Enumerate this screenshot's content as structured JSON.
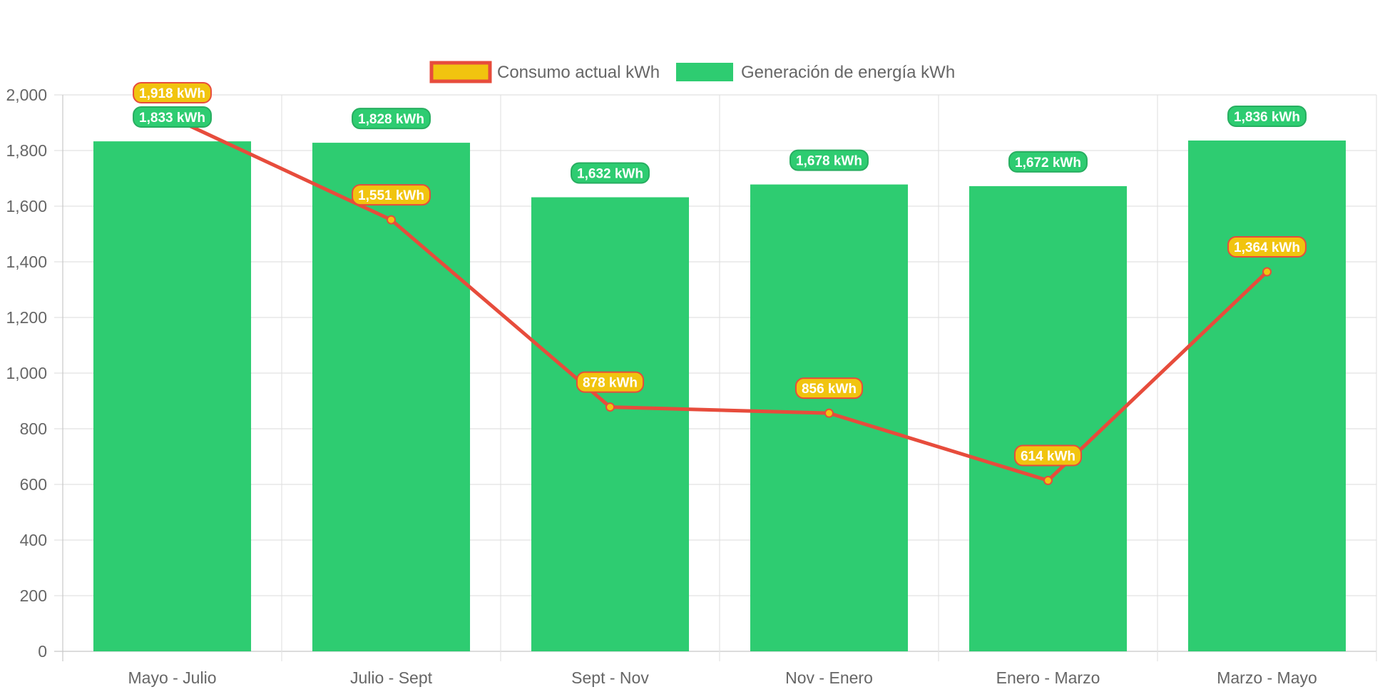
{
  "chart_data": {
    "type": "bar",
    "categories": [
      "Mayo - Julio",
      "Julio - Sept",
      "Sept - Nov",
      "Nov - Enero",
      "Enero - Marzo",
      "Marzo - Mayo"
    ],
    "series": [
      {
        "name": "Consumo actual kWh",
        "kind": "line",
        "values": [
          1918,
          1551,
          878,
          856,
          614,
          1364
        ],
        "labels": [
          "1,918 kWh",
          "1,551 kWh",
          "878 kWh",
          "856 kWh",
          "614 kWh",
          "1,364 kWh"
        ],
        "line_color": "#e74c3c",
        "fill_color": "#f1c40f"
      },
      {
        "name": "Generación de energía kWh",
        "kind": "bar",
        "values": [
          1833,
          1828,
          1632,
          1678,
          1672,
          1836
        ],
        "labels": [
          "1,833 kWh",
          "1,828 kWh",
          "1,632 kWh",
          "1,678 kWh",
          "1,672 kWh",
          "1,836 kWh"
        ],
        "color": "#2ecc71",
        "label_border": "#27ae60"
      }
    ],
    "ylim": [
      0,
      2000
    ],
    "y_ticks": [
      0,
      200,
      400,
      600,
      800,
      1000,
      1200,
      1400,
      1600,
      1800,
      2000
    ],
    "y_tick_labels": [
      "0",
      "200",
      "400",
      "600",
      "800",
      "1,000",
      "1,200",
      "1,400",
      "1,600",
      "1,800",
      "2,000"
    ],
    "grid": true,
    "legend_position": "top-center"
  }
}
